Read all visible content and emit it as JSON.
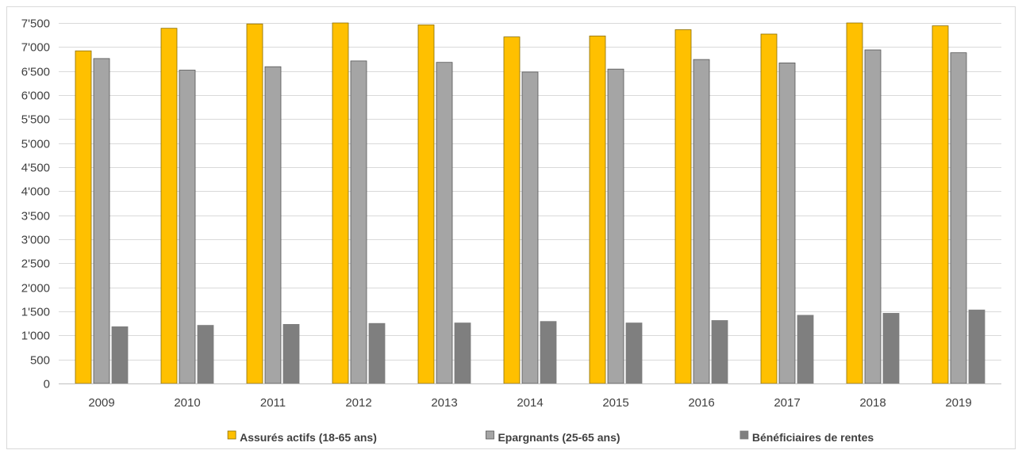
{
  "chart_data": {
    "type": "bar",
    "title": "",
    "xlabel": "",
    "ylabel": "",
    "ylim": [
      0,
      7500
    ],
    "yticks": [
      0,
      500,
      1000,
      1500,
      2000,
      2500,
      3000,
      3500,
      4000,
      4500,
      5000,
      5500,
      6000,
      6500,
      7000,
      7500
    ],
    "ytick_labels": [
      "0",
      "500",
      "1'000",
      "1'500",
      "2'000",
      "2'500",
      "3'000",
      "3'500",
      "4'000",
      "4'500",
      "5'000",
      "5'500",
      "6'000",
      "6'500",
      "7'000",
      "7'500"
    ],
    "grid": true,
    "legend_position": "bottom",
    "categories": [
      "2009",
      "2010",
      "2011",
      "2012",
      "2013",
      "2014",
      "2015",
      "2016",
      "2017",
      "2018",
      "2019"
    ],
    "series": [
      {
        "name": "Assurés actifs (18-65 ans)",
        "color": "#ffc000",
        "stroke": "#8a6d00",
        "values": [
          6920,
          7390,
          7480,
          7520,
          7460,
          7210,
          7230,
          7360,
          7270,
          7500,
          7440
        ]
      },
      {
        "name": "Epargnants (25-65 ans)",
        "color": "#a5a5a5",
        "stroke": "#555555",
        "values": [
          6760,
          6520,
          6590,
          6710,
          6680,
          6480,
          6540,
          6740,
          6670,
          6940,
          6880
        ]
      },
      {
        "name": "Bénéficiaires de rentes",
        "color": "#7f7f7f",
        "stroke": "#7f7f7f",
        "values": [
          1180,
          1210,
          1230,
          1250,
          1260,
          1290,
          1260,
          1310,
          1420,
          1460,
          1530
        ]
      }
    ]
  }
}
